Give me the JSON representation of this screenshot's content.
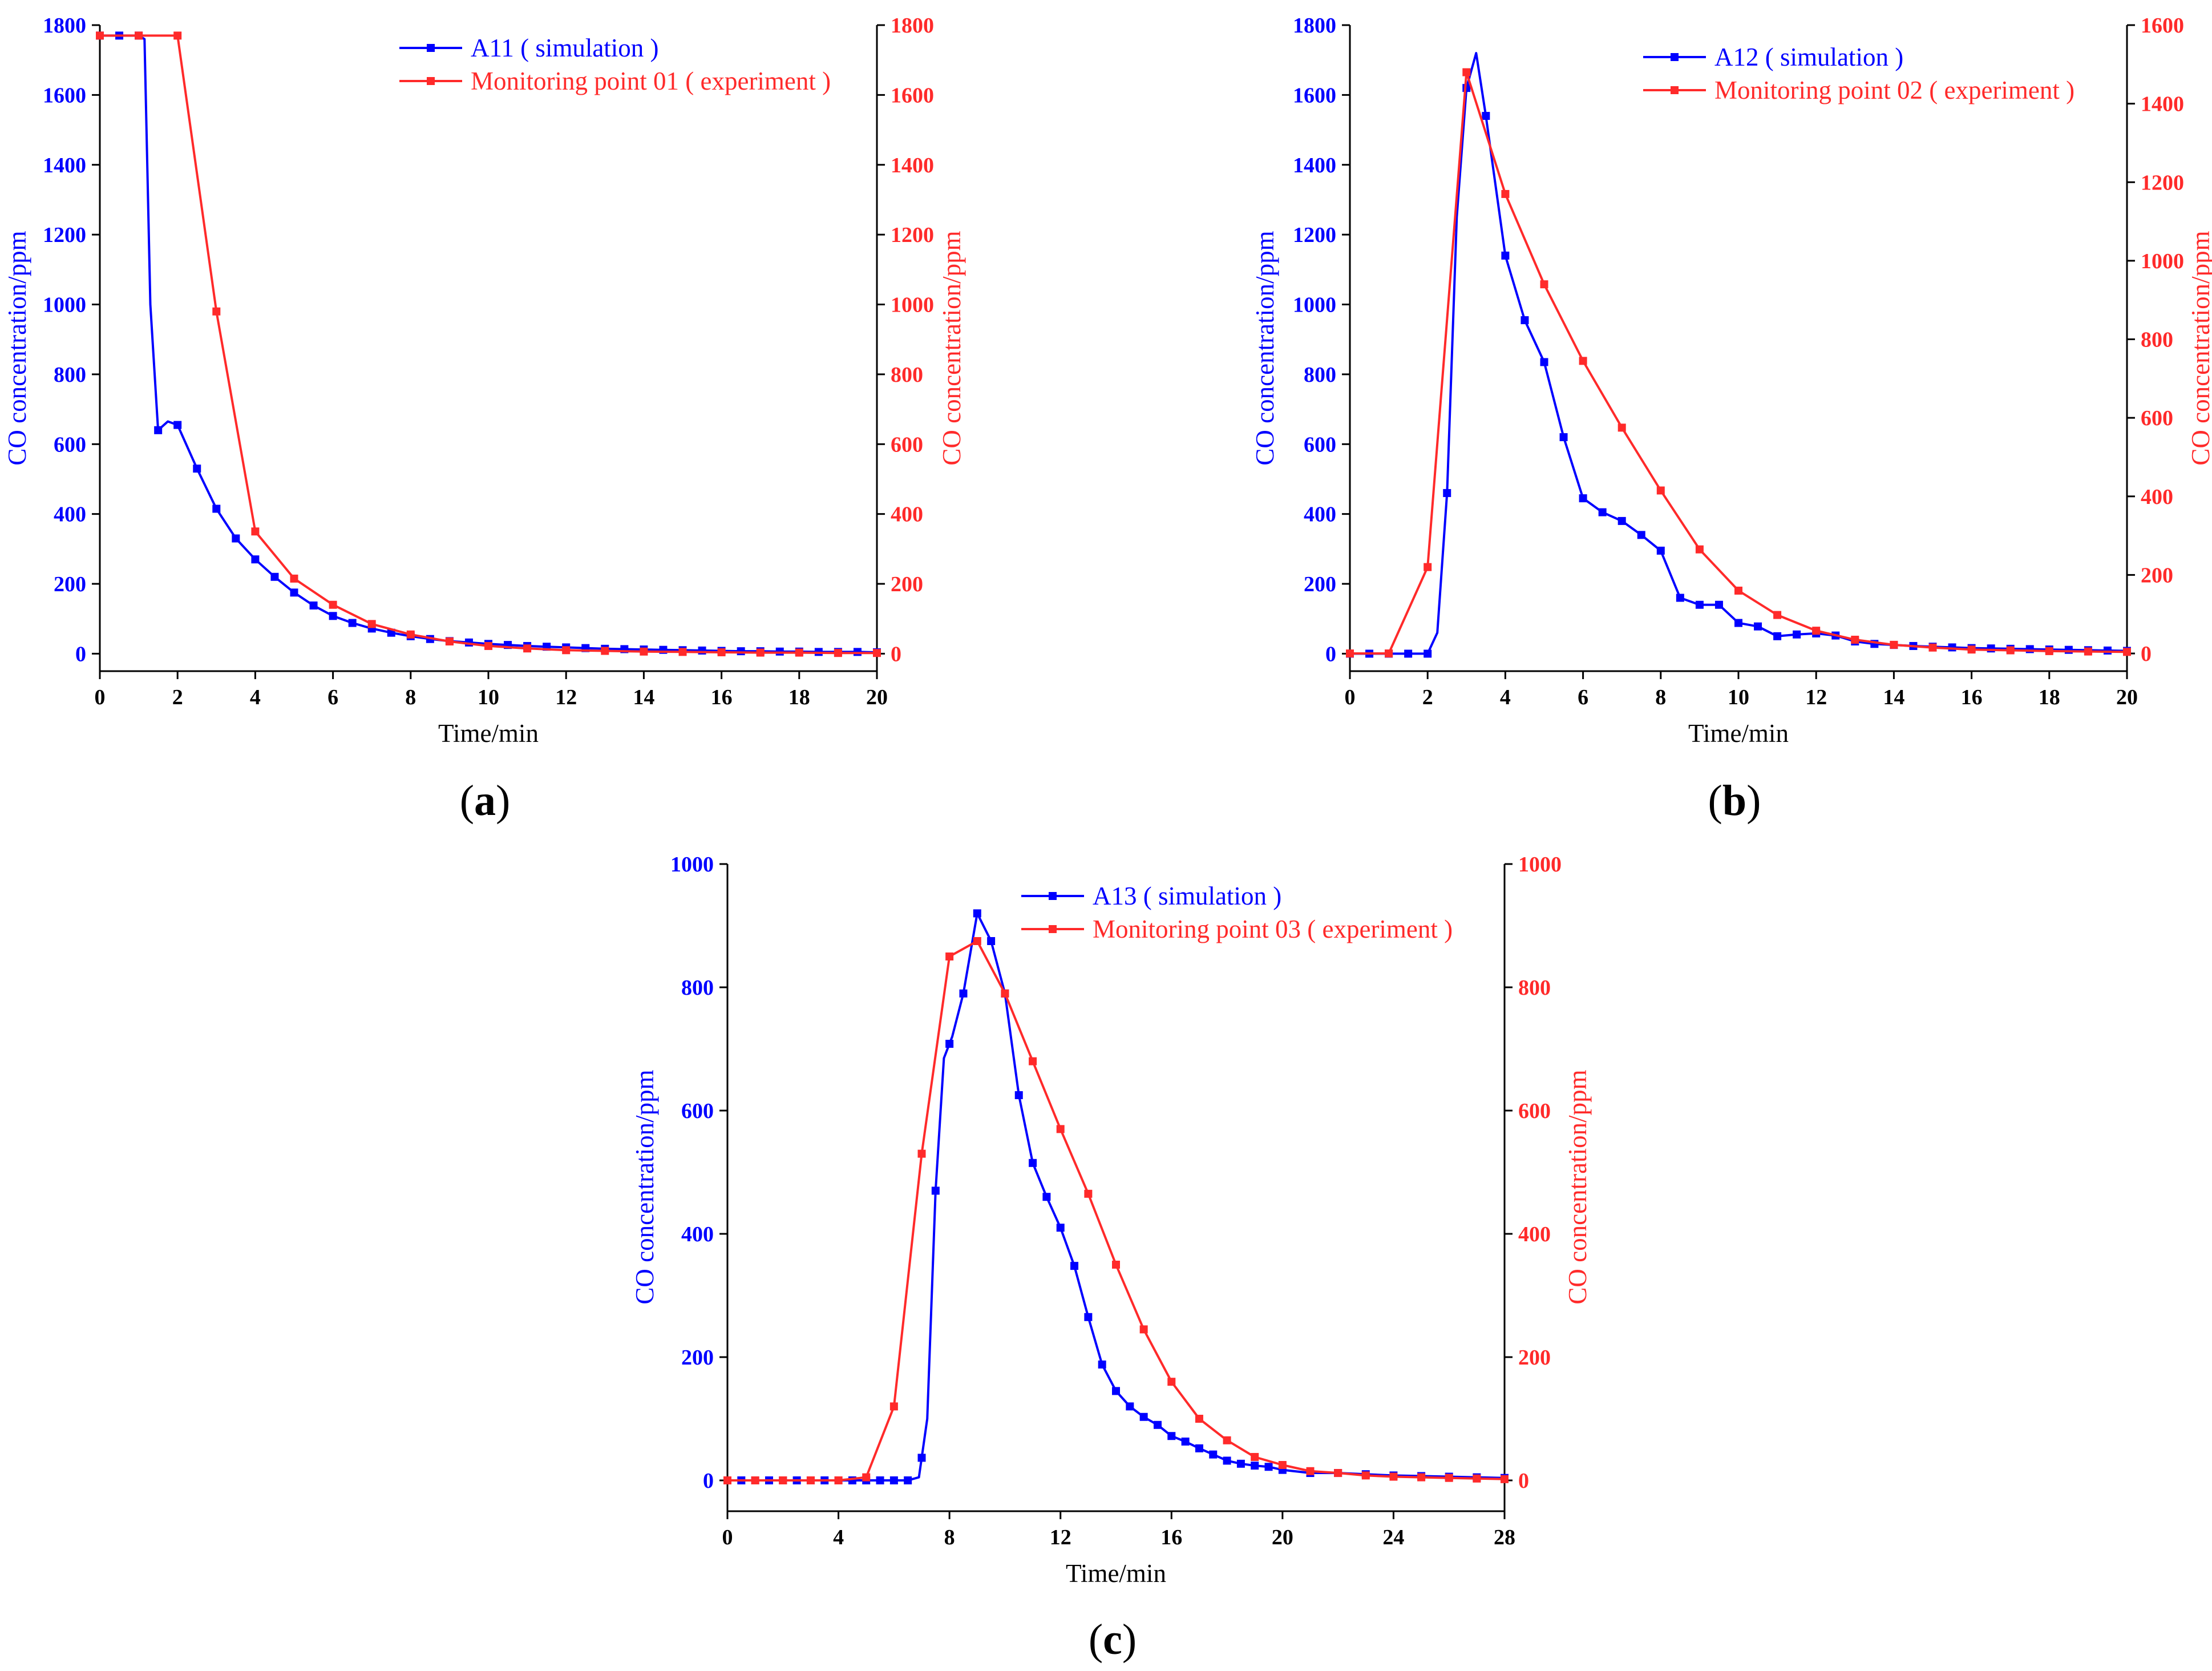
{
  "colors": {
    "simulation": "#0000ff",
    "experiment": "#ff2a2a",
    "axis": "#000000"
  },
  "chart_data": [
    {
      "id": "a",
      "type": "line",
      "panel_label": "a",
      "xlabel": "Time/min",
      "ylabel_left": "CO concentration/ppm",
      "ylabel_right": "CO concentration/ppm",
      "xlim": [
        0,
        20
      ],
      "ylim_left": [
        -50,
        1800
      ],
      "ylim_right": [
        -50,
        1800
      ],
      "x_ticks": [
        "0",
        "2",
        "4",
        "6",
        "8",
        "10",
        "12",
        "14",
        "16",
        "18",
        "20"
      ],
      "y_ticks_left": [
        "0",
        "200",
        "400",
        "600",
        "800",
        "1000",
        "1200",
        "1400",
        "1600",
        "1800"
      ],
      "y_ticks_right": [
        "0",
        "200",
        "400",
        "600",
        "800",
        "1000",
        "1200",
        "1400",
        "1600",
        "1800"
      ],
      "series": [
        {
          "name": "A11 ( simulation )",
          "axis": "left",
          "color": "#0000ff",
          "x": [
            0,
            0.5,
            1,
            1.15,
            1.3,
            1.5,
            1.75,
            2,
            2.5,
            3,
            3.5,
            4,
            4.5,
            5,
            5.5,
            6,
            6.5,
            7,
            7.5,
            8,
            8.5,
            9,
            9.5,
            10,
            10.5,
            11,
            11.5,
            12,
            12.5,
            13,
            13.5,
            14,
            14.5,
            15,
            15.5,
            16,
            16.5,
            17,
            17.5,
            18,
            18.5,
            19,
            19.5,
            20
          ],
          "values": [
            1770,
            1770,
            1770,
            1760,
            1000,
            640,
            665,
            655,
            530,
            415,
            330,
            270,
            220,
            175,
            138,
            108,
            88,
            72,
            60,
            50,
            42,
            36,
            32,
            28,
            25,
            22,
            20,
            18,
            16,
            14,
            13,
            12,
            11,
            10,
            9,
            8,
            7,
            7,
            6,
            6,
            5,
            5,
            5,
            4
          ],
          "markers": [
            0,
            0.5,
            1,
            1.5,
            2,
            2.5,
            3,
            3.5,
            4,
            4.5,
            5,
            5.5,
            6,
            6.5,
            7,
            7.5,
            8,
            8.5,
            9,
            9.5,
            10,
            10.5,
            11,
            11.5,
            12,
            12.5,
            13,
            13.5,
            14,
            14.5,
            15,
            15.5,
            16,
            16.5,
            17,
            17.5,
            18,
            18.5,
            19,
            19.5,
            20
          ]
        },
        {
          "name": "Monitoring point 01 ( experiment )",
          "axis": "right",
          "color": "#ff2a2a",
          "x": [
            0,
            1,
            2,
            3,
            4,
            5,
            6,
            7,
            8,
            9,
            10,
            11,
            12,
            13,
            14,
            15,
            16,
            17,
            18,
            19,
            20
          ],
          "values": [
            1770,
            1770,
            1770,
            980,
            350,
            215,
            140,
            85,
            55,
            35,
            22,
            15,
            10,
            8,
            6,
            5,
            4,
            3,
            3,
            2,
            2
          ]
        }
      ]
    },
    {
      "id": "b",
      "type": "line",
      "panel_label": "b",
      "xlabel": "Time/min",
      "ylabel_left": "CO concentration/ppm",
      "ylabel_right": "CO concentration/ppm",
      "xlim": [
        0,
        20
      ],
      "ylim_left": [
        -50,
        1800
      ],
      "ylim_right": [
        -45,
        1600
      ],
      "x_ticks": [
        "0",
        "2",
        "4",
        "6",
        "8",
        "10",
        "12",
        "14",
        "16",
        "18",
        "20"
      ],
      "y_ticks_left": [
        "0",
        "200",
        "400",
        "600",
        "800",
        "1000",
        "1200",
        "1400",
        "1600",
        "1800"
      ],
      "y_ticks_right": [
        "0",
        "200",
        "400",
        "600",
        "800",
        "1000",
        "1200",
        "1400",
        "1600"
      ],
      "series": [
        {
          "name": "A12 ( simulation )",
          "axis": "left",
          "color": "#0000ff",
          "x": [
            0,
            0.5,
            1,
            1.5,
            2,
            2.25,
            2.5,
            2.75,
            3,
            3.25,
            3.5,
            4,
            4.5,
            5,
            5.5,
            6,
            6.5,
            7,
            7.5,
            8,
            8.5,
            9,
            9.5,
            10,
            10.5,
            11,
            11.5,
            12,
            12.5,
            13,
            13.5,
            14,
            14.5,
            15,
            15.5,
            16,
            16.5,
            17,
            17.5,
            18,
            18.5,
            19,
            19.5,
            20
          ],
          "values": [
            0,
            0,
            0,
            0,
            0,
            60,
            460,
            1250,
            1620,
            1720,
            1540,
            1140,
            955,
            835,
            620,
            445,
            405,
            380,
            340,
            295,
            160,
            140,
            140,
            88,
            78,
            50,
            55,
            58,
            52,
            35,
            28,
            25,
            22,
            20,
            18,
            16,
            15,
            14,
            13,
            12,
            11,
            10,
            9,
            8
          ],
          "markers": [
            0,
            0.5,
            1,
            1.5,
            2,
            2.5,
            3,
            3.5,
            4,
            4.5,
            5,
            5.5,
            6,
            6.5,
            7,
            7.5,
            8,
            8.5,
            9,
            9.5,
            10,
            10.5,
            11,
            11.5,
            12,
            12.5,
            13,
            13.5,
            14,
            14.5,
            15,
            15.5,
            16,
            16.5,
            17,
            17.5,
            18,
            18.5,
            19,
            19.5,
            20
          ]
        },
        {
          "name": "Monitoring point 02 ( experiment )",
          "axis": "right",
          "color": "#ff2a2a",
          "x": [
            0,
            1,
            2,
            3,
            4,
            5,
            6,
            7,
            8,
            9,
            10,
            11,
            12,
            13,
            14,
            15,
            16,
            17,
            18,
            19,
            20
          ],
          "values": [
            0,
            0,
            220,
            1480,
            1170,
            940,
            745,
            575,
            415,
            265,
            160,
            98,
            58,
            35,
            22,
            15,
            10,
            8,
            6,
            5,
            4
          ]
        }
      ]
    },
    {
      "id": "c",
      "type": "line",
      "panel_label": "c",
      "xlabel": "Time/min",
      "ylabel_left": "CO concentration/ppm",
      "ylabel_right": "CO concentration/ppm",
      "xlim": [
        0,
        28
      ],
      "ylim_left": [
        -50,
        1000
      ],
      "ylim_right": [
        -50,
        1000
      ],
      "x_ticks": [
        "0",
        "4",
        "8",
        "12",
        "16",
        "20",
        "24",
        "28"
      ],
      "y_ticks_left": [
        "0",
        "200",
        "400",
        "600",
        "800",
        "1000"
      ],
      "y_ticks_right": [
        "0",
        "200",
        "400",
        "600",
        "800",
        "1000"
      ],
      "series": [
        {
          "name": "A13 ( simulation )",
          "axis": "left",
          "color": "#0000ff",
          "x": [
            0,
            1,
            2,
            3,
            4,
            5,
            6,
            6.5,
            6.9,
            7.2,
            7.5,
            7.8,
            8.1,
            8.5,
            9,
            9.5,
            10,
            10.5,
            11,
            11.5,
            12,
            12.5,
            13,
            13.5,
            14,
            14.5,
            15,
            15.5,
            16,
            16.5,
            17,
            17.5,
            18,
            18.5,
            19,
            19.5,
            20,
            21,
            22,
            23,
            24,
            25,
            26,
            27,
            28
          ],
          "values": [
            0,
            0,
            0,
            0,
            0,
            0,
            0,
            0,
            5,
            100,
            470,
            685,
            720,
            790,
            920,
            875,
            790,
            625,
            515,
            460,
            410,
            348,
            265,
            188,
            145,
            120,
            103,
            90,
            72,
            63,
            52,
            42,
            32,
            27,
            24,
            22,
            17,
            12,
            12,
            10,
            8,
            7,
            6,
            5,
            4
          ],
          "markers": [
            0,
            0.5,
            1,
            1.5,
            2,
            2.5,
            3,
            3.5,
            4,
            4.5,
            5,
            5.5,
            6,
            6.5,
            7,
            7.5,
            8,
            8.5,
            9,
            9.5,
            10,
            10.5,
            11,
            11.5,
            12,
            12.5,
            13,
            13.5,
            14,
            14.5,
            15,
            15.5,
            16,
            16.5,
            17,
            17.5,
            18,
            18.5,
            19,
            19.5,
            20,
            21,
            22,
            23,
            24,
            25,
            26,
            27,
            28
          ]
        },
        {
          "name": "Monitoring point 03 ( experiment )",
          "axis": "right",
          "color": "#ff2a2a",
          "x": [
            0,
            1,
            2,
            3,
            4,
            5,
            6,
            7,
            8,
            9,
            10,
            11,
            12,
            13,
            14,
            15,
            16,
            17,
            18,
            19,
            20,
            21,
            22,
            23,
            24,
            25,
            26,
            27,
            28
          ],
          "values": [
            0,
            0,
            0,
            0,
            0,
            5,
            120,
            530,
            850,
            875,
            790,
            680,
            570,
            465,
            350,
            245,
            160,
            100,
            65,
            38,
            25,
            15,
            12,
            8,
            6,
            5,
            4,
            3,
            2
          ]
        }
      ]
    }
  ]
}
